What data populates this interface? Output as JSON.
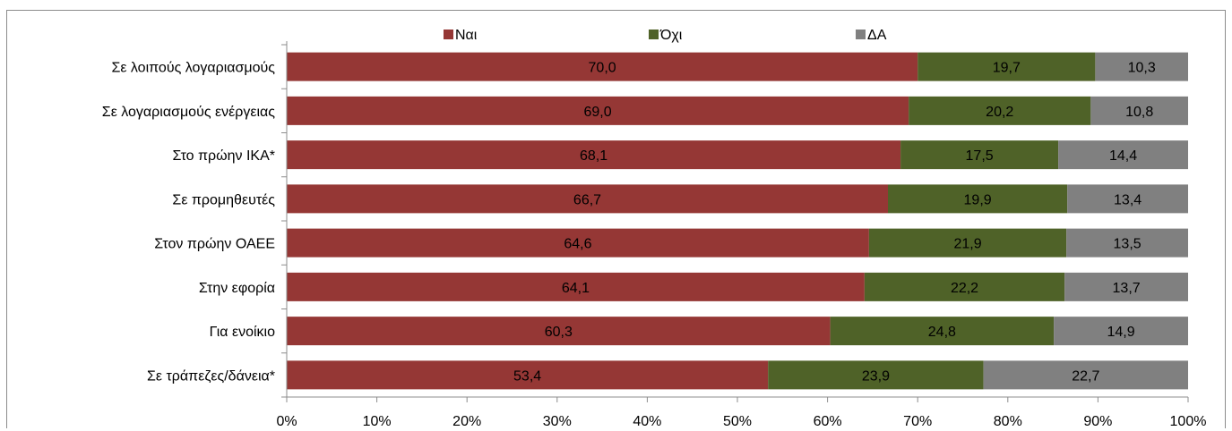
{
  "chart_data": {
    "type": "bar",
    "orientation": "horizontal",
    "stacked": "percent",
    "title": "",
    "xlabel": "",
    "ylabel": "",
    "categories": [
      "Σε λοιπούς λογαριασμούς",
      "Σε λογαριασμούς ενέργειας",
      "Στο πρώην ΙΚΑ*",
      "Σε προμηθευτές",
      "Στον πρώην ΟΑΕΕ",
      "Στην εφορία",
      "Για ενοίκιο",
      "Σε τράπεζες/δάνεια*"
    ],
    "series": [
      {
        "name": "Ναι",
        "color": "#953735",
        "values": [
          70.0,
          69.0,
          68.1,
          66.7,
          64.6,
          64.1,
          60.3,
          53.4
        ],
        "labels": [
          "70,0",
          "69,0",
          "68,1",
          "66,7",
          "64,6",
          "64,1",
          "60,3",
          "53,4"
        ]
      },
      {
        "name": "Όχι",
        "color": "#4f6228",
        "values": [
          19.7,
          20.2,
          17.5,
          19.9,
          21.9,
          22.2,
          24.8,
          23.9
        ],
        "labels": [
          "19,7",
          "20,2",
          "17,5",
          "19,9",
          "21,9",
          "22,2",
          "24,8",
          "23,9"
        ]
      },
      {
        "name": "ΔΑ",
        "color": "#808080",
        "values": [
          10.3,
          10.8,
          14.4,
          13.4,
          13.5,
          13.7,
          14.9,
          22.7
        ],
        "labels": [
          "10,3",
          "10,8",
          "14,4",
          "13,4",
          "13,5",
          "13,7",
          "14,9",
          "22,7"
        ]
      }
    ],
    "xlim": [
      0,
      100
    ],
    "x_ticks": [
      "0%",
      "10%",
      "20%",
      "30%",
      "40%",
      "50%",
      "60%",
      "70%",
      "80%",
      "90%",
      "100%"
    ],
    "grid": false,
    "legend_position": "top"
  }
}
